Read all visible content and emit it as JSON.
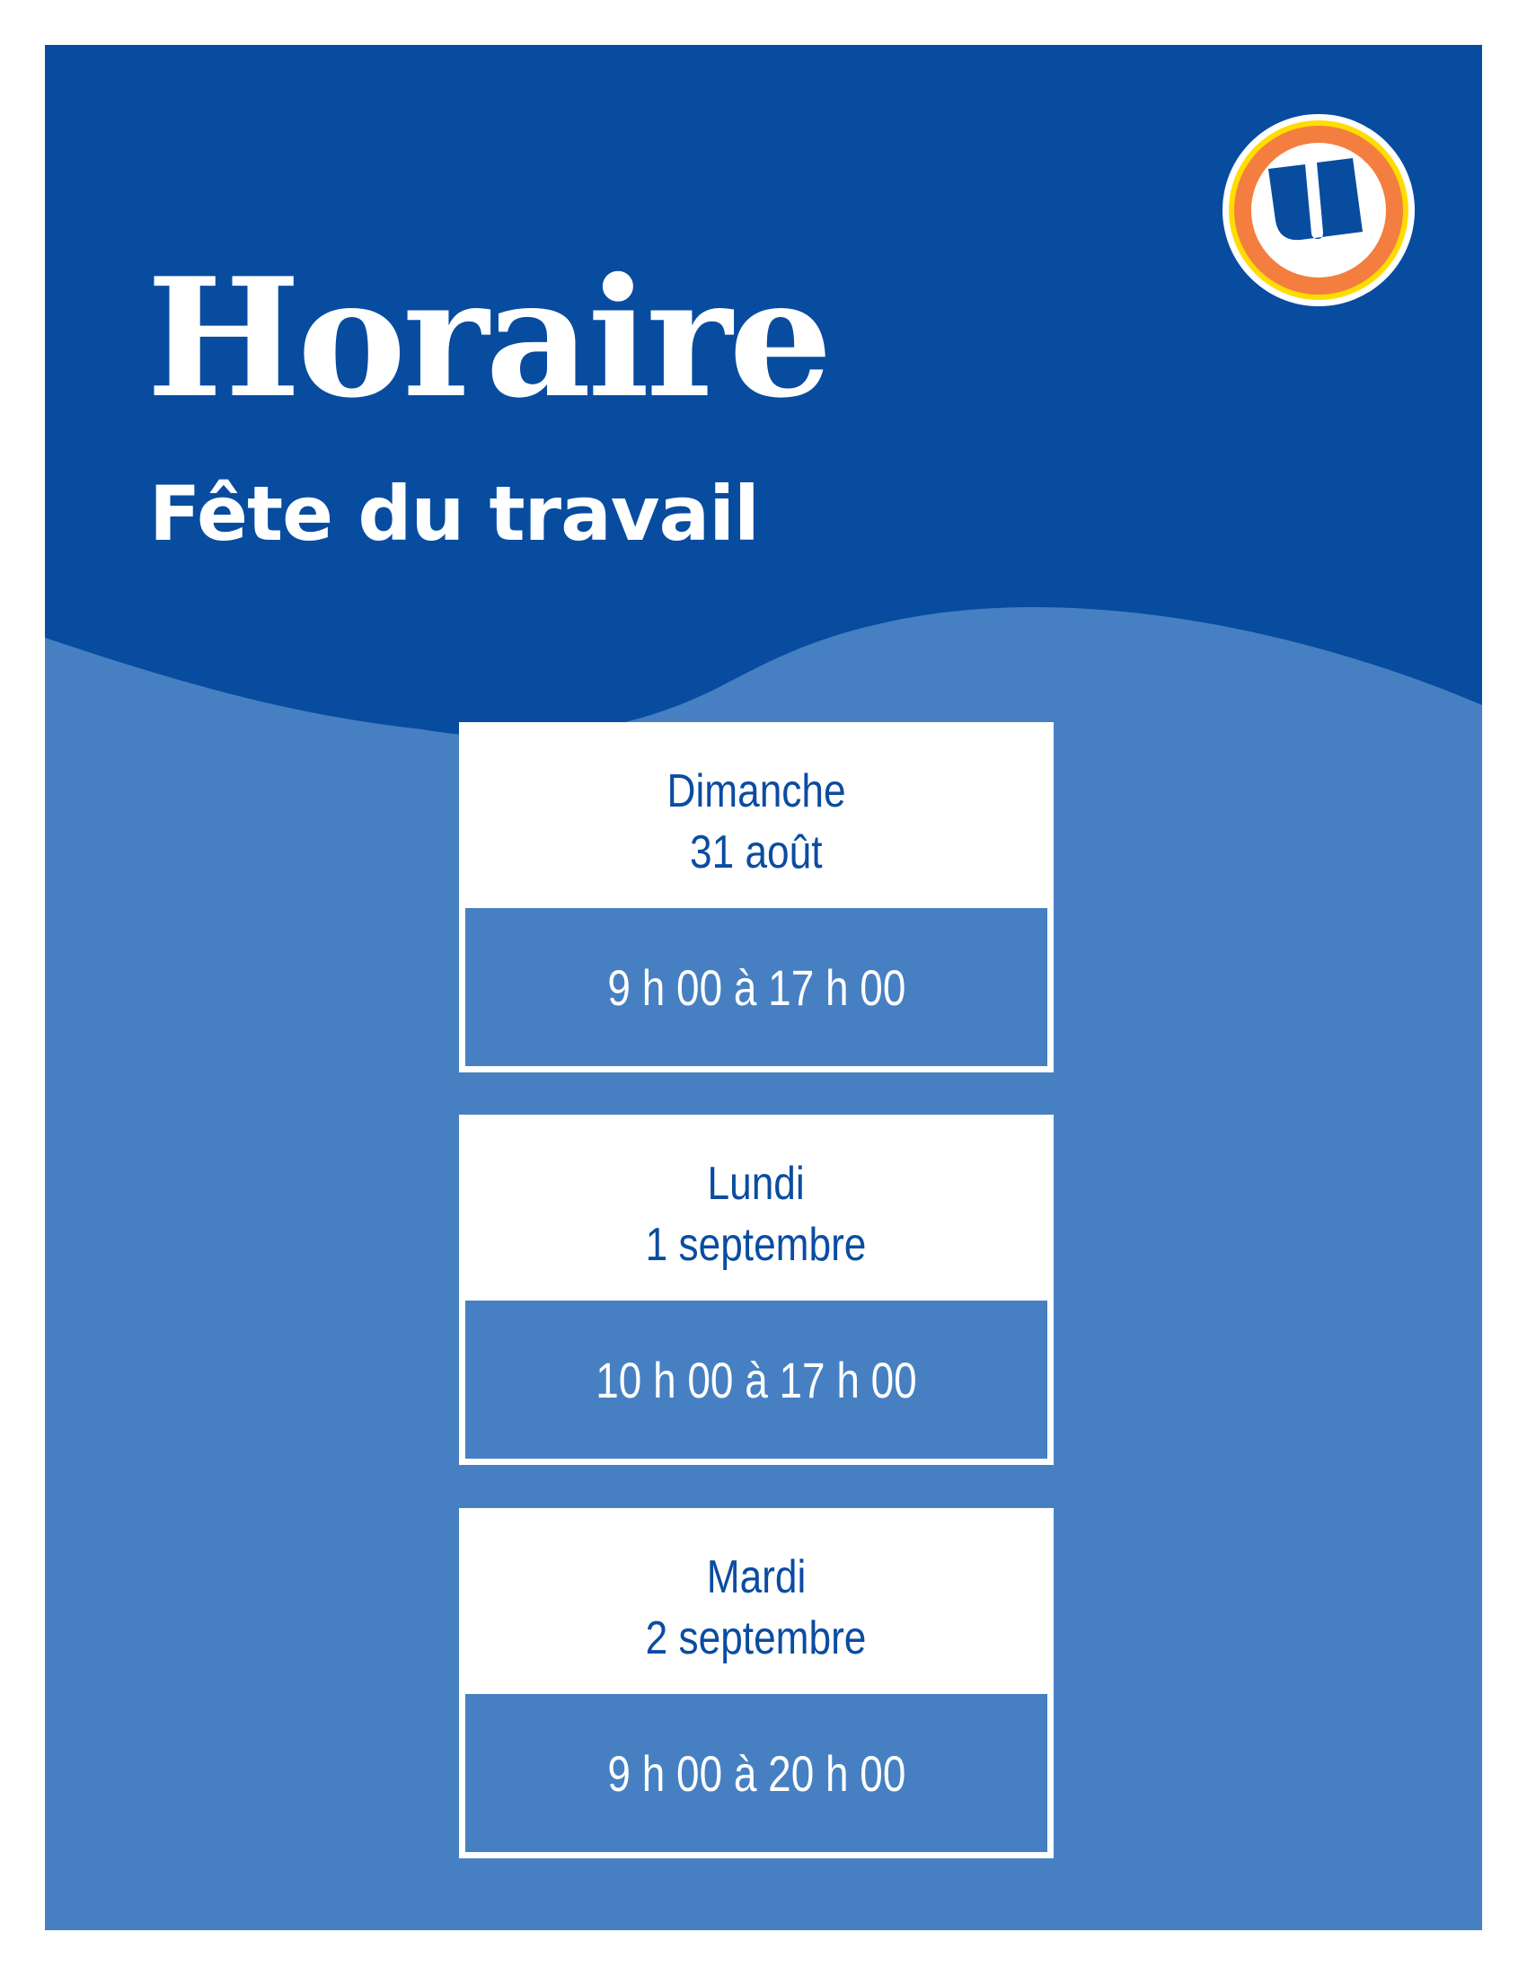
{
  "header": {
    "title": "Horaire",
    "subtitle": "Fête du travail"
  },
  "logo": {
    "letter": "U",
    "icon": "u-logo"
  },
  "schedule": [
    {
      "day": "Dimanche",
      "date": "31 août",
      "hours": "9 h 00 à 17 h 00"
    },
    {
      "day": "Lundi",
      "date": "1 septembre",
      "hours": "10 h 00 à 17 h 00"
    },
    {
      "day": "Mardi",
      "date": "2 septembre",
      "hours": "9 h 00 à 20 h 00"
    }
  ],
  "colors": {
    "dark_blue": "#084ca0",
    "light_blue": "#4680c2",
    "orange": "#f47e40",
    "yellow": "#ffdd00"
  }
}
